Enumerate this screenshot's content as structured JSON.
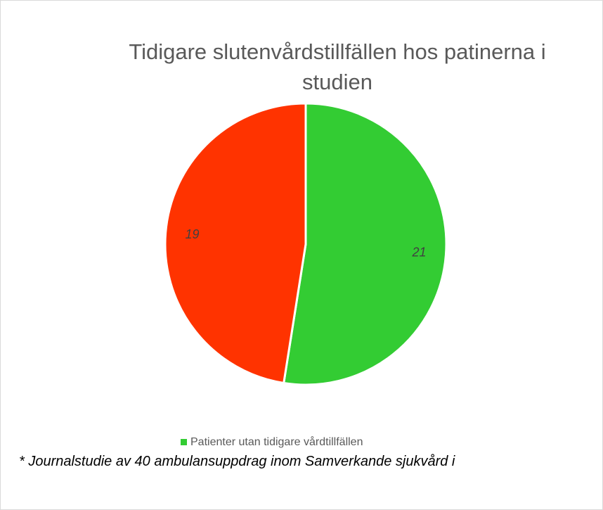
{
  "chart_data": {
    "type": "pie",
    "title": "Tidigare slutenvårdstillfällen hos patinerna i studien",
    "categories": [
      "Patienter utan tidigare vårdtillfällen",
      null
    ],
    "values": [
      21,
      19
    ],
    "colors": [
      "#33cc33",
      "#ff3300"
    ],
    "footnote": "* Journalstudie av 40 ambulansuppdrag inom Samverkande sjukvård i"
  }
}
